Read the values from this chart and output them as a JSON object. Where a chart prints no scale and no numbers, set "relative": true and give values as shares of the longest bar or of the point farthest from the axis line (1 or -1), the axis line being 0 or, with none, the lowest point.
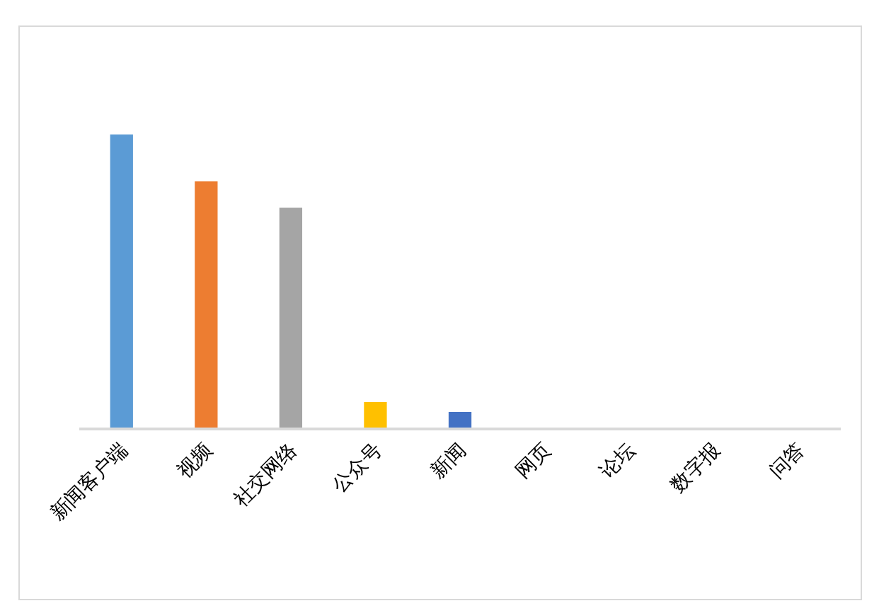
{
  "chart_data": {
    "type": "bar",
    "relative": true,
    "categories": [
      "新闻客户端",
      "视频",
      "社交网络",
      "公众号",
      "新闻",
      "网页",
      "论坛",
      "数字报",
      "问答"
    ],
    "values": [
      1,
      0.84,
      0.75,
      0.087,
      0.053,
      0,
      0,
      0,
      0
    ],
    "colors": [
      "#5b9bd5",
      "#ed7d31",
      "#a5a5a5",
      "#ffc000",
      "#4472c4",
      "#70ad47",
      "#255e91",
      "#9e480e",
      "#636363"
    ]
  }
}
